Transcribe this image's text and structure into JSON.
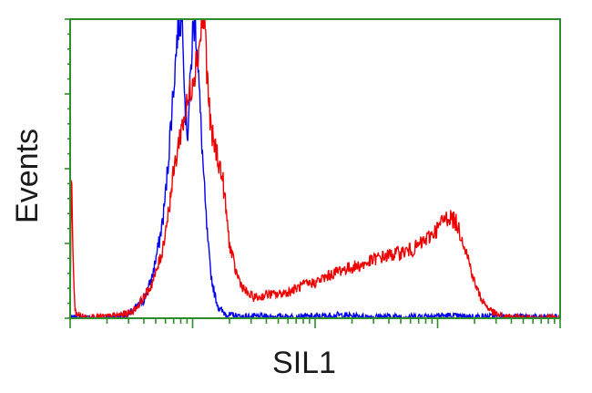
{
  "chart_data": {
    "type": "line",
    "title": "",
    "xlabel": "SIL1",
    "ylabel": "Events",
    "x_scale": "log",
    "x_decades": 4,
    "xlim": [
      0,
      4
    ],
    "ylim": [
      0,
      100
    ],
    "grid": false,
    "legend": "none",
    "frame_color": "#2e8b2e",
    "series": [
      {
        "color": "#0000ee",
        "x": [
          0.0,
          0.3,
          0.45,
          0.5,
          0.55,
          0.6,
          0.63,
          0.67,
          0.7,
          0.73,
          0.76,
          0.78,
          0.8,
          0.82,
          0.84,
          0.86,
          0.88,
          0.9,
          0.92,
          0.94,
          0.96,
          0.98,
          1.0,
          1.02,
          1.04,
          1.06,
          1.08,
          1.1,
          1.12,
          1.14,
          1.16,
          1.18,
          1.2,
          1.22,
          1.25,
          1.3,
          1.4,
          1.6,
          1.8,
          2.0,
          2.2,
          2.4,
          2.6,
          2.8,
          3.0,
          3.2,
          3.4,
          3.6,
          3.8,
          4.0
        ],
        "y": [
          0,
          0,
          1,
          2,
          4,
          6,
          9,
          14,
          20,
          26,
          34,
          42,
          52,
          64,
          75,
          86,
          98,
          100,
          100,
          70,
          62,
          78,
          95,
          100,
          90,
          70,
          55,
          40,
          28,
          18,
          12,
          8,
          5,
          3,
          2,
          1,
          0.5,
          0.5,
          0.5,
          0.5,
          1,
          0.5,
          0.5,
          0.5,
          1,
          0.5,
          0.5,
          0.5,
          0.3,
          0.3
        ]
      },
      {
        "color": "#ee0000",
        "x": [
          0.0,
          0.01,
          0.02,
          0.04,
          0.1,
          0.3,
          0.4,
          0.5,
          0.55,
          0.6,
          0.65,
          0.7,
          0.75,
          0.8,
          0.85,
          0.9,
          0.95,
          1.0,
          1.05,
          1.08,
          1.1,
          1.12,
          1.15,
          1.2,
          1.25,
          1.3,
          1.35,
          1.4,
          1.45,
          1.5,
          1.55,
          1.6,
          1.7,
          1.8,
          1.9,
          2.0,
          2.1,
          2.2,
          2.3,
          2.4,
          2.5,
          2.6,
          2.7,
          2.8,
          2.9,
          3.0,
          3.05,
          3.1,
          3.15,
          3.2,
          3.25,
          3.3,
          3.35,
          3.4,
          3.45,
          3.5,
          3.55,
          3.6,
          3.7,
          3.8,
          4.0
        ],
        "y": [
          0,
          52,
          25,
          2,
          0.5,
          0.5,
          1,
          2,
          4,
          7,
          10,
          15,
          22,
          35,
          50,
          62,
          70,
          80,
          90,
          100,
          100,
          80,
          62,
          55,
          45,
          25,
          16,
          11,
          8,
          7,
          7,
          8,
          8,
          9,
          11,
          12,
          14,
          16,
          17,
          18,
          20,
          21,
          22,
          23,
          26,
          30,
          33,
          34,
          32,
          27,
          20,
          12,
          7,
          4,
          2,
          1,
          0.5,
          0.3,
          0.2,
          0.1,
          0.1
        ]
      }
    ]
  }
}
